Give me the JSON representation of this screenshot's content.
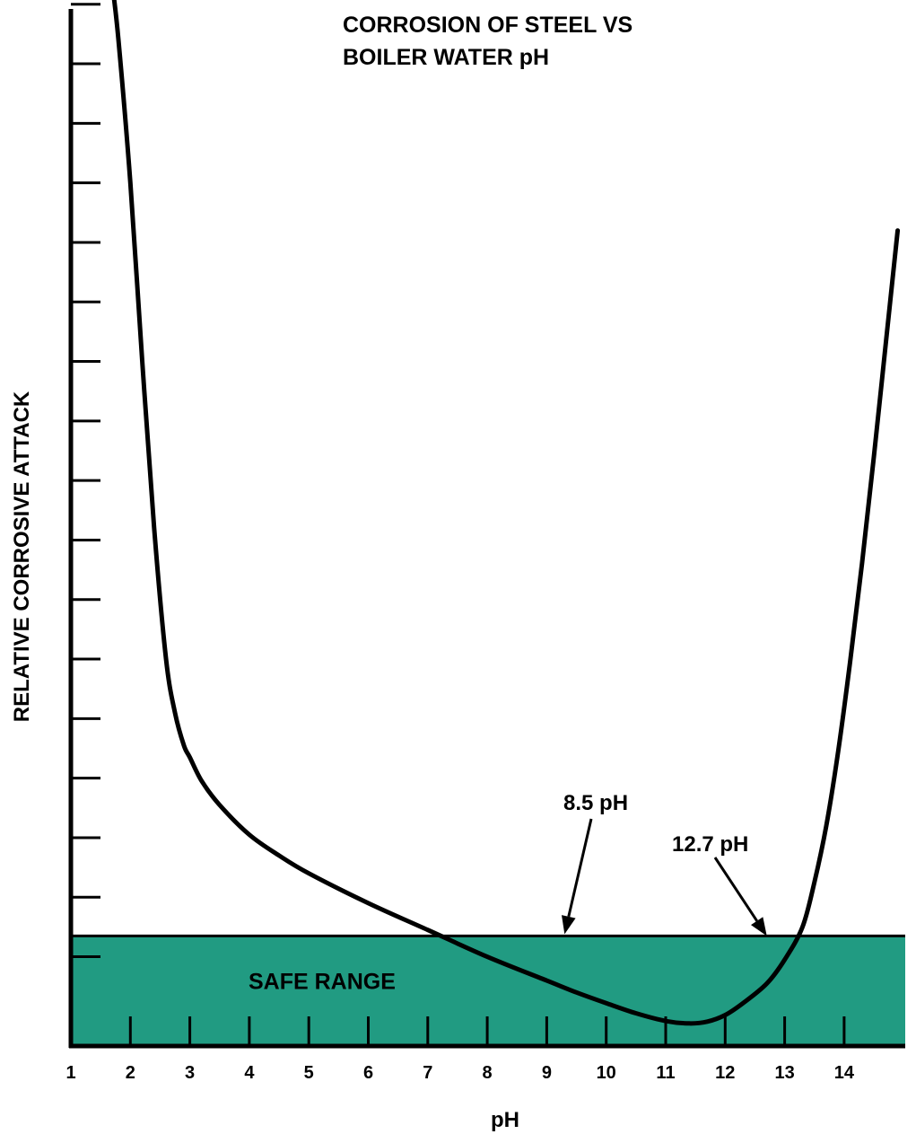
{
  "chart_data": {
    "type": "line",
    "title_lines": [
      "CORROSION OF STEEL VS",
      "BOILER WATER pH"
    ],
    "xlabel": "pH",
    "ylabel": "RELATIVE CORROSIVE ATTACK",
    "xlim": [
      1,
      15
    ],
    "ylim": [
      0,
      17.5
    ],
    "x_ticks": [
      1,
      2,
      3,
      4,
      5,
      6,
      7,
      8,
      9,
      10,
      11,
      12,
      13,
      14
    ],
    "y_ticks": [
      1.5,
      2.5,
      3.5,
      4.5,
      5.5,
      6.5,
      7.5,
      8.5,
      9.5,
      10.5,
      11.5,
      12.5,
      13.5,
      14.5,
      15.5,
      16.5,
      17.5
    ],
    "y_tick_labels_shown": false,
    "grid": false,
    "series": [
      {
        "x": [
          1.7,
          1.8,
          2.0,
          2.2,
          2.4,
          2.6,
          2.75,
          2.9,
          3.0,
          3.2,
          3.5,
          4.0,
          4.5,
          5.0,
          6.0,
          7.0,
          8.0,
          9.0,
          9.5,
          10.0,
          10.5,
          11.0,
          11.4,
          11.7,
          12.0,
          12.3,
          12.7,
          13.0,
          13.3,
          13.5,
          13.7,
          13.9,
          14.1,
          14.3,
          14.5,
          14.7,
          14.9
        ],
        "y": [
          17.8,
          16.9,
          14.5,
          11.5,
          8.7,
          6.5,
          5.6,
          5.05,
          4.85,
          4.45,
          4.05,
          3.55,
          3.2,
          2.9,
          2.4,
          1.95,
          1.5,
          1.1,
          0.9,
          0.72,
          0.55,
          0.42,
          0.38,
          0.41,
          0.52,
          0.72,
          1.05,
          1.45,
          2.0,
          2.75,
          3.7,
          4.95,
          6.45,
          8.1,
          9.9,
          11.8,
          13.7
        ]
      }
    ],
    "bands": [
      {
        "label": "SAFE RANGE",
        "ymin": 0,
        "ymax": 1.85,
        "color": "#219b82"
      }
    ],
    "annotations": [
      {
        "text": "8.5 pH",
        "point": [
          9.3,
          1.88
        ]
      },
      {
        "text": "12.7 pH",
        "point": [
          12.7,
          1.85
        ]
      }
    ]
  }
}
